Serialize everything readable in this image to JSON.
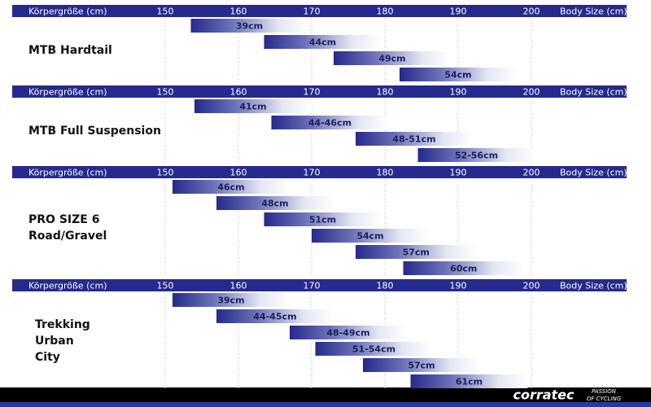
{
  "chart_data": [
    {
      "type": "range_bar",
      "title": [
        "MTB Hardtail"
      ],
      "x_label_left": "Körpergröße (cm)",
      "x_label_right": "Body Size (cm)",
      "xlim": [
        150,
        200
      ],
      "xticks": [
        150,
        160,
        170,
        180,
        190,
        200
      ],
      "grid": true,
      "color": "#252a8c",
      "categories": [
        "39cm",
        "44cm",
        "49cm",
        "54cm"
      ],
      "values": [
        [
          153.5,
          169.5
        ],
        [
          163.5,
          179.5
        ],
        [
          173,
          189
        ],
        [
          182,
          198
        ]
      ]
    },
    {
      "type": "range_bar",
      "title": [
        "MTB Full Suspension"
      ],
      "x_label_left": "Körpergröße (cm)",
      "x_label_right": "Body Size (cm)",
      "xlim": [
        150,
        200
      ],
      "xticks": [
        150,
        160,
        170,
        180,
        190,
        200
      ],
      "grid": true,
      "color": "#252a8c",
      "categories": [
        "41cm",
        "44-46cm",
        "48-51cm",
        "52-56cm"
      ],
      "values": [
        [
          154,
          170
        ],
        [
          164.5,
          180.5
        ],
        [
          176,
          192
        ],
        [
          184.5,
          200.5
        ]
      ]
    },
    {
      "type": "range_bar",
      "title": [
        "PRO SIZE 6",
        "Road/Gravel"
      ],
      "x_label_left": "Körpergröße (cm)",
      "x_label_right": "Body Size (cm)",
      "xlim": [
        150,
        200
      ],
      "xticks": [
        150,
        160,
        170,
        180,
        190,
        200
      ],
      "grid": true,
      "color": "#252a8c",
      "categories": [
        "46cm",
        "48cm",
        "51cm",
        "54cm",
        "57cm",
        "60cm"
      ],
      "values": [
        [
          151,
          167
        ],
        [
          157,
          173
        ],
        [
          163.5,
          179.5
        ],
        [
          170,
          186
        ],
        [
          176,
          192.5
        ],
        [
          182.5,
          199
        ]
      ]
    },
    {
      "type": "range_bar",
      "title": [
        "Trekking",
        "Urban",
        "City"
      ],
      "x_label_left": "Körpergröße (cm)",
      "x_label_right": "Body Size (cm)",
      "xlim": [
        150,
        200
      ],
      "xticks": [
        150,
        160,
        170,
        180,
        190,
        200
      ],
      "grid": true,
      "color": "#252a8c",
      "categories": [
        "39cm",
        "44-45cm",
        "48-49cm",
        "51-54cm",
        "57cm",
        "61cm"
      ],
      "values": [
        [
          151,
          167
        ],
        [
          157,
          173
        ],
        [
          167,
          183
        ],
        [
          170.5,
          186.5
        ],
        [
          177,
          193
        ],
        [
          183.5,
          199.5
        ]
      ]
    }
  ],
  "footer": {
    "brand": "corratec",
    "tagline": [
      "PASSION",
      "OF CYCLING"
    ]
  }
}
